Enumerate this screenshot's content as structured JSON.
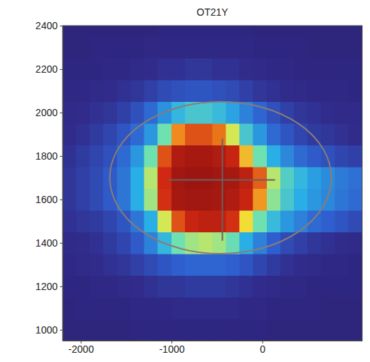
{
  "chart_data": {
    "type": "heatmap",
    "title": "OT21Y",
    "xlim": [
      -2200,
      1100
    ],
    "ylim": [
      950,
      2400
    ],
    "xticks": [
      -2000,
      -1000,
      0
    ],
    "yticks": [
      1000,
      1200,
      1400,
      1600,
      1800,
      2000,
      2200,
      2400
    ],
    "x_edges": [
      -2200,
      -2050,
      -1900,
      -1750,
      -1600,
      -1450,
      -1300,
      -1150,
      -1000,
      -850,
      -700,
      -550,
      -400,
      -250,
      -100,
      50,
      200,
      350,
      500,
      650,
      800,
      950,
      1100
    ],
    "y_edges": [
      950,
      1050,
      1150,
      1250,
      1350,
      1450,
      1550,
      1650,
      1750,
      1850,
      1950,
      2050,
      2150,
      2250,
      2350,
      2400
    ],
    "color_range": [
      0,
      100
    ],
    "z": [
      [
        4,
        4,
        4,
        4,
        4,
        5,
        5,
        5,
        5,
        5,
        5,
        5,
        5,
        5,
        5,
        4,
        4,
        4,
        4,
        4,
        4,
        4
      ],
      [
        4,
        5,
        5,
        5,
        5,
        6,
        6,
        6,
        7,
        7,
        7,
        7,
        7,
        6,
        6,
        5,
        5,
        5,
        5,
        4,
        4,
        4
      ],
      [
        5,
        5,
        6,
        6,
        7,
        8,
        9,
        10,
        10,
        11,
        11,
        11,
        10,
        9,
        8,
        7,
        6,
        6,
        5,
        5,
        5,
        5
      ],
      [
        6,
        7,
        8,
        9,
        10,
        12,
        14,
        16,
        18,
        19,
        19,
        19,
        18,
        16,
        13,
        11,
        9,
        8,
        7,
        6,
        6,
        5
      ],
      [
        7,
        8,
        9,
        11,
        13,
        17,
        24,
        34,
        45,
        50,
        52,
        50,
        44,
        32,
        24,
        18,
        14,
        12,
        10,
        9,
        8,
        7
      ],
      [
        9,
        10,
        11,
        13,
        16,
        22,
        32,
        55,
        80,
        88,
        90,
        90,
        85,
        60,
        45,
        35,
        28,
        24,
        20,
        18,
        16,
        14
      ],
      [
        10,
        12,
        14,
        17,
        22,
        32,
        50,
        85,
        95,
        96,
        96,
        95,
        93,
        88,
        70,
        48,
        38,
        32,
        28,
        25,
        22,
        20
      ],
      [
        10,
        12,
        14,
        17,
        22,
        32,
        52,
        86,
        96,
        97,
        97,
        96,
        95,
        90,
        78,
        52,
        40,
        34,
        29,
        26,
        23,
        21
      ],
      [
        9,
        11,
        13,
        15,
        20,
        28,
        45,
        80,
        93,
        95,
        95,
        93,
        88,
        65,
        45,
        32,
        25,
        20,
        17,
        15,
        13,
        12
      ],
      [
        8,
        9,
        11,
        13,
        16,
        20,
        28,
        45,
        72,
        80,
        80,
        75,
        55,
        38,
        28,
        20,
        16,
        13,
        11,
        10,
        9,
        8
      ],
      [
        7,
        8,
        9,
        10,
        12,
        15,
        20,
        27,
        34,
        38,
        38,
        35,
        30,
        24,
        19,
        15,
        12,
        10,
        9,
        8,
        7,
        7
      ],
      [
        6,
        6,
        7,
        8,
        9,
        10,
        12,
        14,
        15,
        16,
        16,
        15,
        14,
        12,
        10,
        9,
        8,
        7,
        6,
        6,
        6,
        5
      ],
      [
        5,
        5,
        5,
        6,
        6,
        7,
        8,
        9,
        9,
        10,
        10,
        9,
        9,
        8,
        7,
        6,
        6,
        5,
        5,
        5,
        5,
        5
      ],
      [
        4,
        4,
        5,
        5,
        5,
        5,
        6,
        6,
        6,
        6,
        6,
        6,
        6,
        6,
        5,
        5,
        5,
        5,
        4,
        4,
        4,
        4
      ],
      [
        4,
        4,
        4,
        4,
        4,
        4,
        4,
        5,
        5,
        5,
        5,
        5,
        5,
        5,
        4,
        4,
        4,
        4,
        4,
        4,
        4,
        4
      ]
    ],
    "ellipse": {
      "cx": -460,
      "cy": 1700,
      "rx": 1220,
      "ry": 350
    },
    "crosshair": {
      "x": -440,
      "y": 1690,
      "x_span": [
        -1040,
        140
      ],
      "y_span": [
        1410,
        1880
      ]
    }
  }
}
